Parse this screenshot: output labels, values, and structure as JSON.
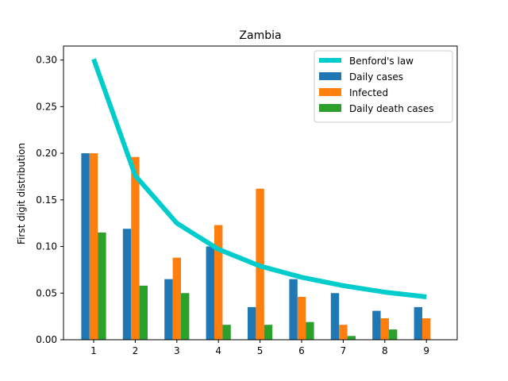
{
  "chart_data": {
    "type": "bar",
    "title": "Zambia",
    "xlabel": "",
    "ylabel": "First digit distribution",
    "categories": [
      "1",
      "2",
      "3",
      "4",
      "5",
      "6",
      "7",
      "8",
      "9"
    ],
    "ylim": [
      0,
      0.315
    ],
    "yticks": [
      "0.00",
      "0.05",
      "0.10",
      "0.15",
      "0.20",
      "0.25",
      "0.30"
    ],
    "grid": false,
    "legend_position": "top-right",
    "series": [
      {
        "name": "Daily cases",
        "color": "#1f77b4",
        "values": [
          0.2,
          0.119,
          0.065,
          0.1,
          0.035,
          0.065,
          0.05,
          0.031,
          0.035
        ]
      },
      {
        "name": "Infected",
        "color": "#ff7f0e",
        "values": [
          0.2,
          0.196,
          0.088,
          0.123,
          0.162,
          0.046,
          0.016,
          0.023,
          0.023
        ]
      },
      {
        "name": "Daily death cases",
        "color": "#2ca02c",
        "values": [
          0.115,
          0.058,
          0.05,
          0.016,
          0.016,
          0.019,
          0.004,
          0.011,
          0.0
        ]
      }
    ],
    "line_series": {
      "name": "Benford's law",
      "color": "#00cccc",
      "values": [
        0.301,
        0.176,
        0.125,
        0.097,
        0.079,
        0.067,
        0.058,
        0.051,
        0.046
      ]
    }
  }
}
